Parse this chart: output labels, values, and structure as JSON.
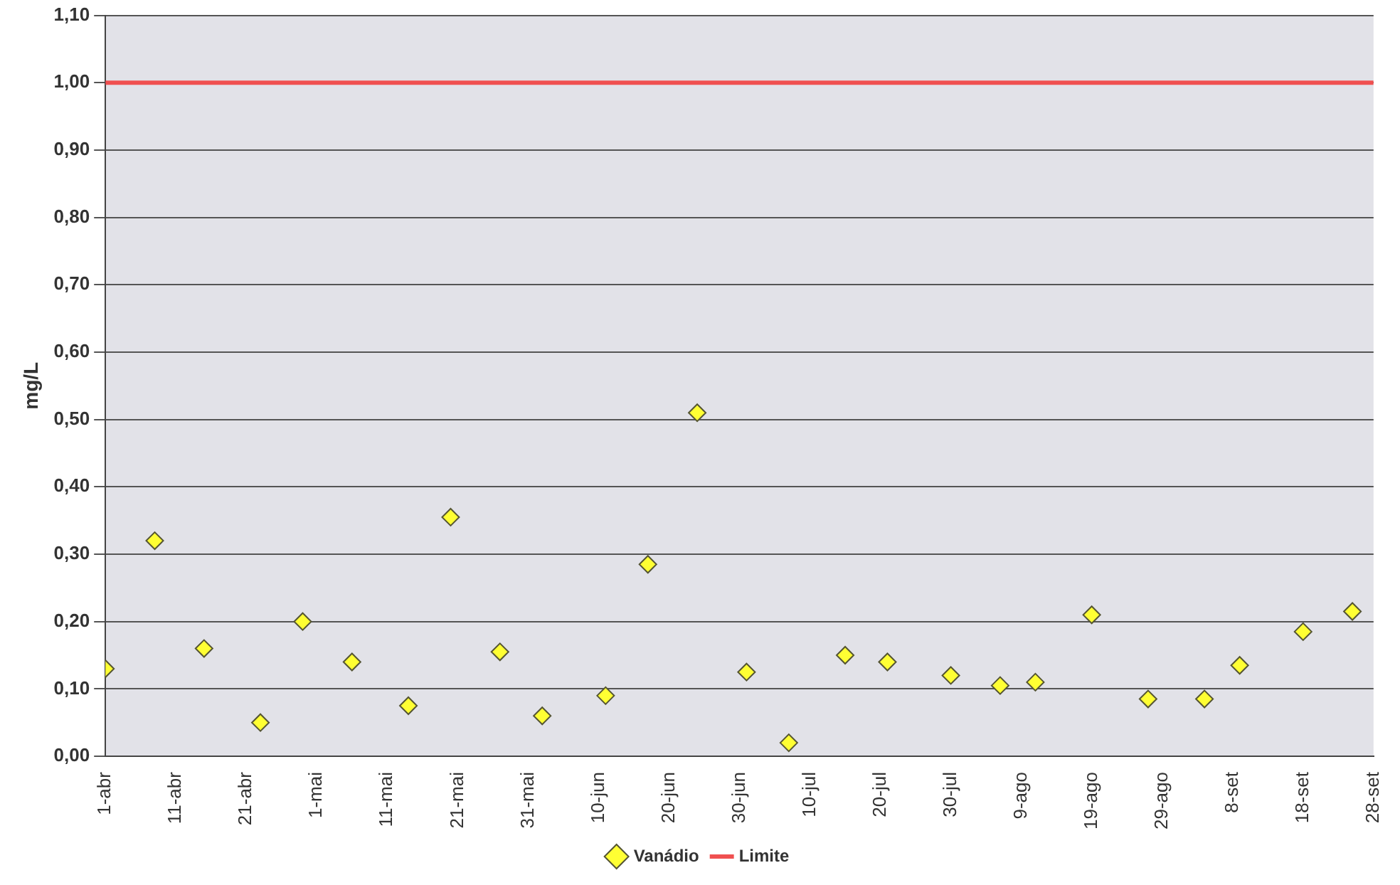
{
  "chart_data": {
    "type": "scatter",
    "ylabel": "mg/L",
    "x": [
      "--04-01",
      "--04-08",
      "--04-15",
      "--04-23",
      "--04-29",
      "--05-06",
      "--05-14",
      "--05-20",
      "--05-27",
      "--06-02",
      "--06-11",
      "--06-17",
      "--06-24",
      "--07-01",
      "--07-07",
      "--07-15",
      "--07-21",
      "--07-30",
      "--08-06",
      "--08-11",
      "--08-19",
      "--08-27",
      "--09-04",
      "--09-09",
      "--09-18",
      "--09-25"
    ],
    "series": [
      {
        "name": "Vanádio",
        "color": "#ffff33",
        "marker": "diamond",
        "values": [
          0.13,
          0.32,
          0.16,
          0.05,
          0.2,
          0.14,
          0.075,
          0.355,
          0.155,
          0.06,
          0.09,
          0.285,
          0.51,
          0.125,
          0.02,
          0.15,
          0.14,
          0.12,
          0.105,
          0.11,
          0.21,
          0.085,
          0.085,
          0.135,
          0.185,
          0.215
        ]
      },
      {
        "name": "Limite",
        "type": "line",
        "color": "#f05050",
        "marker": "none",
        "x": [
          "--04-01",
          "--09-28"
        ],
        "values": [
          1.0,
          1.0
        ]
      }
    ],
    "xlim": [
      "--04-01",
      "--09-28"
    ],
    "xticks": [
      {
        "value": "--04-01",
        "label": "1-abr"
      },
      {
        "value": "--04-11",
        "label": "11-abr"
      },
      {
        "value": "--04-21",
        "label": "21-abr"
      },
      {
        "value": "--05-01",
        "label": "1-mai"
      },
      {
        "value": "--05-11",
        "label": "11-mai"
      },
      {
        "value": "--05-21",
        "label": "21-mai"
      },
      {
        "value": "--05-31",
        "label": "31-mai"
      },
      {
        "value": "--06-10",
        "label": "10-jun"
      },
      {
        "value": "--06-20",
        "label": "20-jun"
      },
      {
        "value": "--06-30",
        "label": "30-jun"
      },
      {
        "value": "--07-10",
        "label": "10-jul"
      },
      {
        "value": "--07-20",
        "label": "20-jul"
      },
      {
        "value": "--07-30",
        "label": "30-jul"
      },
      {
        "value": "--08-09",
        "label": "9-ago"
      },
      {
        "value": "--08-19",
        "label": "19-ago"
      },
      {
        "value": "--08-29",
        "label": "29-ago"
      },
      {
        "value": "--09-08",
        "label": "8-set"
      },
      {
        "value": "--09-18",
        "label": "18-set"
      },
      {
        "value": "--09-28",
        "label": "28-set"
      }
    ],
    "ylim": [
      0,
      1.1
    ],
    "yticks": [
      {
        "value": 0,
        "label": "0,00"
      },
      {
        "value": 0.1,
        "label": "0,10"
      },
      {
        "value": 0.2,
        "label": "0,20"
      },
      {
        "value": 0.3,
        "label": "0,30"
      },
      {
        "value": 0.4,
        "label": "0,40"
      },
      {
        "value": 0.5,
        "label": "0,50"
      },
      {
        "value": 0.6,
        "label": "0,60"
      },
      {
        "value": 0.7,
        "label": "0,70"
      },
      {
        "value": 0.8,
        "label": "0,80"
      },
      {
        "value": 0.9,
        "label": "0,90"
      },
      {
        "value": 1.0,
        "label": "1,00"
      },
      {
        "value": 1.1,
        "label": "1,10"
      }
    ],
    "grid": "y",
    "legend": "bottom"
  }
}
